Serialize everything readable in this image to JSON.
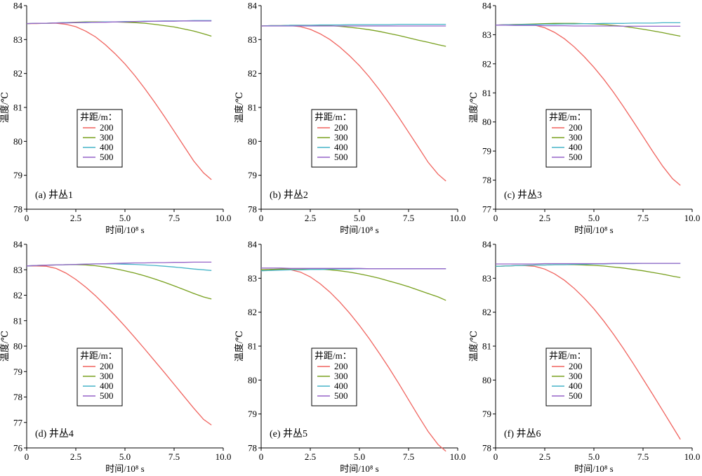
{
  "figure": {
    "legend_title": "井距/m：",
    "xlabel": "时间/10⁸ s",
    "ylabel": "温度/℃"
  },
  "colors": {
    "200": "#f0645f",
    "300": "#78a01e",
    "400": "#46b4c8",
    "500": "#9664c8"
  },
  "chart_data": [
    {
      "type": "line",
      "panel_label": "(a) 井丛1",
      "xlabel": "时间/10⁸ s",
      "ylabel": "温度/℃",
      "xlim": [
        0,
        10
      ],
      "ylim": [
        78,
        84
      ],
      "xticks": [
        "0",
        "2.5",
        "5.0",
        "7.5",
        "10.0"
      ],
      "yticks": [
        "78",
        "79",
        "80",
        "81",
        "82",
        "83",
        "84"
      ],
      "legend_title": "井距/m：",
      "legend_position": "center-left",
      "x": [
        0.0,
        0.5,
        1.0,
        1.5,
        2.0,
        2.5,
        3.0,
        3.5,
        4.0,
        4.5,
        5.0,
        5.5,
        6.0,
        6.5,
        7.0,
        7.5,
        8.0,
        8.5,
        9.0,
        9.4
      ],
      "series": [
        {
          "name": "200",
          "values": [
            83.47,
            83.47,
            83.48,
            83.48,
            83.45,
            83.38,
            83.25,
            83.08,
            82.85,
            82.58,
            82.28,
            81.94,
            81.56,
            81.16,
            80.74,
            80.3,
            79.86,
            79.42,
            79.07,
            78.87
          ]
        },
        {
          "name": "300",
          "values": [
            83.47,
            83.48,
            83.48,
            83.49,
            83.5,
            83.51,
            83.52,
            83.52,
            83.52,
            83.52,
            83.51,
            83.5,
            83.48,
            83.45,
            83.41,
            83.37,
            83.31,
            83.25,
            83.17,
            83.1
          ]
        },
        {
          "name": "400",
          "values": [
            83.47,
            83.48,
            83.48,
            83.49,
            83.5,
            83.5,
            83.51,
            83.51,
            83.52,
            83.52,
            83.53,
            83.53,
            83.54,
            83.54,
            83.55,
            83.55,
            83.55,
            83.56,
            83.56,
            83.56
          ]
        },
        {
          "name": "500",
          "values": [
            83.47,
            83.48,
            83.48,
            83.49,
            83.49,
            83.5,
            83.5,
            83.51,
            83.51,
            83.52,
            83.52,
            83.53,
            83.53,
            83.54,
            83.54,
            83.54,
            83.55,
            83.55,
            83.55,
            83.55
          ]
        }
      ]
    },
    {
      "type": "line",
      "panel_label": "(b) 井丛2",
      "xlabel": "时间/10⁸ s",
      "ylabel": "温度/℃",
      "xlim": [
        0,
        10
      ],
      "ylim": [
        78,
        84
      ],
      "xticks": [
        "0",
        "2.5",
        "5.0",
        "7.5",
        "10.0"
      ],
      "yticks": [
        "78",
        "79",
        "80",
        "81",
        "82",
        "83",
        "84"
      ],
      "legend_title": "井距/m：",
      "legend_position": "center-left",
      "x": [
        0.0,
        0.5,
        1.0,
        1.5,
        2.0,
        2.5,
        3.0,
        3.5,
        4.0,
        4.5,
        5.0,
        5.5,
        6.0,
        6.5,
        7.0,
        7.5,
        8.0,
        8.5,
        9.0,
        9.4
      ],
      "series": [
        {
          "name": "200",
          "values": [
            83.4,
            83.41,
            83.41,
            83.41,
            83.38,
            83.3,
            83.17,
            83.0,
            82.78,
            82.52,
            82.23,
            81.9,
            81.53,
            81.13,
            80.71,
            80.27,
            79.83,
            79.38,
            79.03,
            78.83
          ]
        },
        {
          "name": "300",
          "values": [
            83.4,
            83.41,
            83.41,
            83.42,
            83.42,
            83.42,
            83.42,
            83.41,
            83.39,
            83.36,
            83.33,
            83.29,
            83.24,
            83.18,
            83.12,
            83.05,
            82.98,
            82.92,
            82.85,
            82.8
          ]
        },
        {
          "name": "400",
          "values": [
            83.4,
            83.41,
            83.41,
            83.42,
            83.42,
            83.42,
            83.43,
            83.43,
            83.43,
            83.44,
            83.44,
            83.44,
            83.44,
            83.44,
            83.45,
            83.45,
            83.45,
            83.45,
            83.45,
            83.45
          ]
        },
        {
          "name": "500",
          "values": [
            83.4,
            83.4,
            83.4,
            83.4,
            83.4,
            83.4,
            83.4,
            83.4,
            83.4,
            83.4,
            83.4,
            83.4,
            83.4,
            83.4,
            83.4,
            83.4,
            83.4,
            83.4,
            83.4,
            83.4
          ]
        }
      ]
    },
    {
      "type": "line",
      "panel_label": "(c) 井丛3",
      "xlabel": "时间/10⁸ s",
      "ylabel": "温度/℃",
      "xlim": [
        0,
        10
      ],
      "ylim": [
        77,
        84
      ],
      "xticks": [
        "0",
        "2.5",
        "5.0",
        "7.5",
        "10.0"
      ],
      "yticks": [
        "77",
        "78",
        "79",
        "80",
        "81",
        "82",
        "83",
        "84"
      ],
      "legend_title": "井距/m：",
      "legend_position": "center-left",
      "x": [
        0.0,
        0.5,
        1.0,
        1.5,
        2.0,
        2.5,
        3.0,
        3.5,
        4.0,
        4.5,
        5.0,
        5.5,
        6.0,
        6.5,
        7.0,
        7.5,
        8.0,
        8.5,
        9.0,
        9.4
      ],
      "series": [
        {
          "name": "200",
          "values": [
            83.33,
            83.34,
            83.35,
            83.35,
            83.33,
            83.24,
            83.08,
            82.86,
            82.58,
            82.25,
            81.88,
            81.47,
            81.02,
            80.53,
            80.02,
            79.5,
            78.98,
            78.48,
            78.05,
            77.82
          ]
        },
        {
          "name": "300",
          "values": [
            83.33,
            83.34,
            83.35,
            83.36,
            83.37,
            83.38,
            83.39,
            83.39,
            83.39,
            83.38,
            83.37,
            83.35,
            83.32,
            83.29,
            83.24,
            83.19,
            83.13,
            83.07,
            83.0,
            82.95
          ]
        },
        {
          "name": "400",
          "values": [
            83.33,
            83.34,
            83.34,
            83.35,
            83.35,
            83.36,
            83.36,
            83.37,
            83.37,
            83.38,
            83.38,
            83.39,
            83.39,
            83.39,
            83.4,
            83.4,
            83.4,
            83.41,
            83.41,
            83.41
          ]
        },
        {
          "name": "500",
          "values": [
            83.33,
            83.33,
            83.32,
            83.32,
            83.32,
            83.31,
            83.31,
            83.31,
            83.3,
            83.3,
            83.3,
            83.3,
            83.3,
            83.29,
            83.29,
            83.29,
            83.29,
            83.29,
            83.29,
            83.29
          ]
        }
      ]
    },
    {
      "type": "line",
      "panel_label": "(d) 井丛4",
      "xlabel": "时间/10⁸ s",
      "ylabel": "温度/℃",
      "xlim": [
        0,
        10
      ],
      "ylim": [
        76,
        84
      ],
      "xticks": [
        "0",
        "2.5",
        "5.0",
        "7.5",
        "10.0"
      ],
      "yticks": [
        "76",
        "77",
        "78",
        "79",
        "80",
        "81",
        "82",
        "83",
        "84"
      ],
      "legend_title": "井距/m：",
      "legend_position": "bottom-left",
      "x": [
        0.0,
        0.5,
        1.0,
        1.5,
        2.0,
        2.5,
        3.0,
        3.5,
        4.0,
        4.5,
        5.0,
        5.5,
        6.0,
        6.5,
        7.0,
        7.5,
        8.0,
        8.5,
        9.0,
        9.4
      ],
      "series": [
        {
          "name": "200",
          "values": [
            83.15,
            83.15,
            83.14,
            83.05,
            82.87,
            82.62,
            82.32,
            81.98,
            81.6,
            81.2,
            80.78,
            80.34,
            79.89,
            79.43,
            78.97,
            78.5,
            78.03,
            77.56,
            77.12,
            76.9
          ]
        },
        {
          "name": "300",
          "values": [
            83.15,
            83.17,
            83.18,
            83.19,
            83.2,
            83.2,
            83.19,
            83.16,
            83.11,
            83.04,
            82.96,
            82.87,
            82.76,
            82.64,
            82.51,
            82.37,
            82.22,
            82.07,
            81.93,
            81.85
          ]
        },
        {
          "name": "400",
          "values": [
            83.15,
            83.17,
            83.18,
            83.19,
            83.2,
            83.21,
            83.22,
            83.23,
            83.23,
            83.23,
            83.22,
            83.21,
            83.19,
            83.17,
            83.14,
            83.11,
            83.07,
            83.03,
            83.0,
            82.97
          ]
        },
        {
          "name": "500",
          "values": [
            83.15,
            83.17,
            83.18,
            83.19,
            83.2,
            83.21,
            83.22,
            83.23,
            83.24,
            83.25,
            83.26,
            83.27,
            83.27,
            83.28,
            83.28,
            83.29,
            83.29,
            83.3,
            83.3,
            83.3
          ]
        }
      ]
    },
    {
      "type": "line",
      "panel_label": "(e) 井丛5",
      "xlabel": "时间/10⁸ s",
      "ylabel": "温度/℃",
      "xlim": [
        0,
        10
      ],
      "ylim": [
        78,
        84
      ],
      "xticks": [
        "0",
        "2.5",
        "5.0",
        "7.5",
        "10.0"
      ],
      "yticks": [
        "78",
        "79",
        "80",
        "81",
        "82",
        "83",
        "84"
      ],
      "legend_title": "井距/m：",
      "legend_position": "bottom-left",
      "x": [
        0.0,
        0.5,
        1.0,
        1.5,
        2.0,
        2.5,
        3.0,
        3.5,
        4.0,
        4.5,
        5.0,
        5.5,
        6.0,
        6.5,
        7.0,
        7.5,
        8.0,
        8.5,
        9.0,
        9.4
      ],
      "series": [
        {
          "name": "200",
          "values": [
            83.25,
            83.26,
            83.26,
            83.25,
            83.18,
            83.04,
            82.84,
            82.59,
            82.3,
            81.97,
            81.61,
            81.22,
            80.8,
            80.36,
            79.9,
            79.42,
            78.94,
            78.48,
            78.1,
            77.9
          ]
        },
        {
          "name": "300",
          "values": [
            83.25,
            83.26,
            83.27,
            83.28,
            83.28,
            83.28,
            83.27,
            83.25,
            83.22,
            83.18,
            83.13,
            83.07,
            83.0,
            82.92,
            82.84,
            82.75,
            82.65,
            82.55,
            82.45,
            82.35
          ]
        },
        {
          "name": "400",
          "values": [
            83.22,
            83.23,
            83.24,
            83.25,
            83.25,
            83.26,
            83.26,
            83.27,
            83.27,
            83.27,
            83.28,
            83.28,
            83.28,
            83.28,
            83.28,
            83.28,
            83.28,
            83.28,
            83.28,
            83.28
          ]
        },
        {
          "name": "500",
          "values": [
            83.3,
            83.3,
            83.3,
            83.29,
            83.29,
            83.29,
            83.29,
            83.29,
            83.29,
            83.29,
            83.29,
            83.28,
            83.28,
            83.28,
            83.28,
            83.28,
            83.28,
            83.28,
            83.28,
            83.28
          ]
        }
      ]
    },
    {
      "type": "line",
      "panel_label": "(f) 井丛6",
      "xlabel": "时间/10⁸ s",
      "ylabel": "温度/℃",
      "xlim": [
        0,
        10
      ],
      "ylim": [
        78,
        84
      ],
      "xticks": [
        "0",
        "2.5",
        "5.0",
        "7.5",
        "10.0"
      ],
      "yticks": [
        "78",
        "79",
        "80",
        "81",
        "82",
        "83",
        "84"
      ],
      "legend_title": "井距/m：",
      "legend_position": "bottom-left",
      "x": [
        0.0,
        0.5,
        1.0,
        1.5,
        2.0,
        2.5,
        3.0,
        3.5,
        4.0,
        4.5,
        5.0,
        5.5,
        6.0,
        6.5,
        7.0,
        7.5,
        8.0,
        8.5,
        9.0,
        9.4
      ],
      "series": [
        {
          "name": "200",
          "values": [
            83.35,
            83.36,
            83.37,
            83.37,
            83.35,
            83.27,
            83.13,
            82.94,
            82.7,
            82.42,
            82.1,
            81.74,
            81.35,
            80.93,
            80.49,
            80.03,
            79.57,
            79.1,
            78.63,
            78.25
          ]
        },
        {
          "name": "300",
          "values": [
            83.35,
            83.36,
            83.37,
            83.38,
            83.39,
            83.39,
            83.4,
            83.4,
            83.4,
            83.39,
            83.38,
            83.36,
            83.33,
            83.3,
            83.26,
            83.22,
            83.17,
            83.12,
            83.06,
            83.02
          ]
        },
        {
          "name": "400",
          "values": [
            83.35,
            83.36,
            83.37,
            83.38,
            83.39,
            83.39,
            83.4,
            83.4,
            83.41,
            83.41,
            83.42,
            83.42,
            83.43,
            83.43,
            83.43,
            83.44,
            83.44,
            83.44,
            83.44,
            83.44
          ]
        },
        {
          "name": "500",
          "values": [
            83.42,
            83.42,
            83.42,
            83.42,
            83.42,
            83.43,
            83.43,
            83.43,
            83.43,
            83.43,
            83.43,
            83.43,
            83.44,
            83.44,
            83.44,
            83.44,
            83.44,
            83.44,
            83.44,
            83.44
          ]
        }
      ]
    }
  ]
}
